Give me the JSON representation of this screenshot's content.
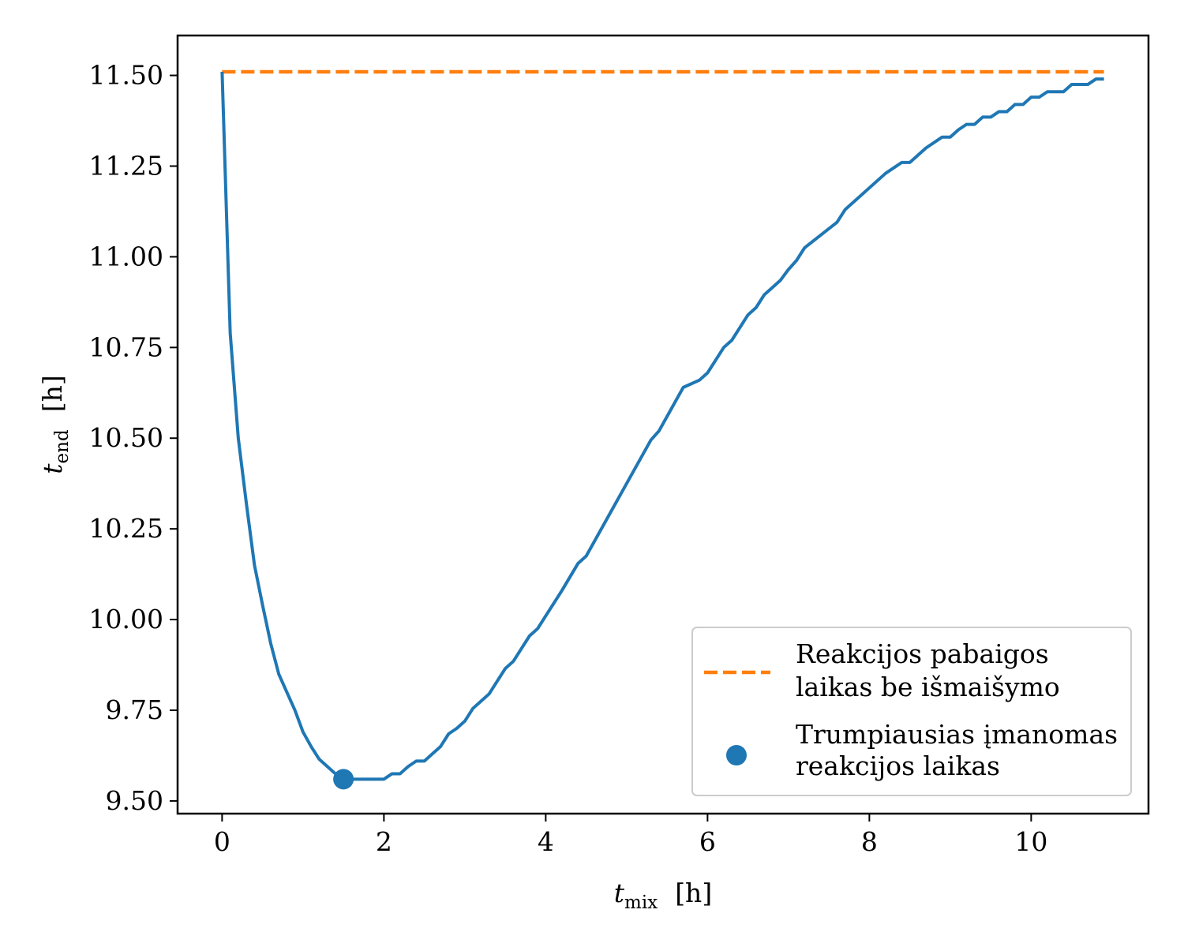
{
  "chart_data": {
    "type": "line",
    "x_ticks": [
      "0",
      "2",
      "4",
      "6",
      "8",
      "10"
    ],
    "y_ticks": [
      "9.50",
      "9.75",
      "10.00",
      "10.25",
      "10.50",
      "10.75",
      "11.00",
      "11.25",
      "11.50"
    ],
    "x_tick_values": [
      0,
      2,
      4,
      6,
      8,
      10
    ],
    "y_tick_values": [
      9.5,
      9.75,
      10.0,
      10.25,
      10.5,
      10.75,
      11.0,
      11.25,
      11.5
    ],
    "xlim": [
      -0.55,
      11.45
    ],
    "ylim": [
      9.465,
      11.61
    ],
    "xlabel": {
      "var": "t",
      "sub": "mix",
      "unit": "[h]"
    },
    "ylabel": {
      "var": "t",
      "sub": "end",
      "unit": "[h]"
    },
    "grid": false,
    "legend_position": "lower-right",
    "series": [
      {
        "name": "Reakcijos pabaigos laikas be išmaišymo",
        "name_lines": [
          "Reakcijos pabaigos",
          "laikas be išmaišymo"
        ],
        "style": "dashed",
        "color": "#ff7f0e",
        "x": [
          0,
          10.9
        ],
        "y": [
          11.51,
          11.51
        ]
      },
      {
        "name": "",
        "style": "solid",
        "color": "#1f77b4",
        "x": [
          0,
          0.1,
          0.2,
          0.3,
          0.4,
          0.5,
          0.6,
          0.7,
          0.8,
          0.9,
          1.0,
          1.1,
          1.2,
          1.3,
          1.4,
          1.5,
          1.6,
          1.7,
          1.8,
          1.9,
          2.0,
          2.1,
          2.2,
          2.3,
          2.4,
          2.5,
          2.6,
          2.7,
          2.8,
          2.9,
          3.0,
          3.1,
          3.2,
          3.3,
          3.4,
          3.5,
          3.6,
          3.7,
          3.8,
          3.9,
          4.0,
          4.2,
          4.4,
          4.5,
          4.7,
          4.9,
          5.1,
          5.3,
          5.4,
          5.5,
          5.7,
          5.9,
          6.0,
          6.1,
          6.2,
          6.3,
          6.4,
          6.5,
          6.6,
          6.7,
          6.8,
          6.9,
          7.0,
          7.1,
          7.2,
          7.4,
          7.6,
          7.7,
          8.0,
          8.2,
          8.4,
          8.5,
          8.7,
          8.9,
          9.0,
          9.1,
          9.2,
          9.3,
          9.4,
          9.5,
          9.6,
          9.7,
          9.8,
          9.9,
          10.0,
          10.1,
          10.2,
          10.3,
          10.4,
          10.5,
          10.6,
          10.7,
          10.8,
          10.9
        ],
        "y": [
          11.51,
          10.79,
          10.5,
          10.32,
          10.15,
          10.04,
          9.935,
          9.85,
          9.8,
          9.75,
          9.69,
          9.65,
          9.615,
          9.595,
          9.575,
          9.56,
          9.56,
          9.56,
          9.56,
          9.56,
          9.56,
          9.575,
          9.575,
          9.595,
          9.61,
          9.61,
          9.63,
          9.65,
          9.685,
          9.7,
          9.72,
          9.755,
          9.775,
          9.795,
          9.83,
          9.865,
          9.885,
          9.92,
          9.955,
          9.975,
          10.01,
          10.08,
          10.155,
          10.175,
          10.255,
          10.335,
          10.415,
          10.495,
          10.52,
          10.56,
          10.64,
          10.66,
          10.68,
          10.715,
          10.75,
          10.77,
          10.805,
          10.84,
          10.86,
          10.895,
          10.915,
          10.935,
          10.965,
          10.99,
          11.025,
          11.06,
          11.095,
          11.13,
          11.19,
          11.23,
          11.26,
          11.26,
          11.3,
          11.33,
          11.33,
          11.35,
          11.365,
          11.365,
          11.385,
          11.385,
          11.4,
          11.4,
          11.42,
          11.42,
          11.44,
          11.44,
          11.455,
          11.455,
          11.455,
          11.475,
          11.475,
          11.475,
          11.49,
          11.49
        ]
      }
    ],
    "highlight_point": {
      "name": "Trumpiausias įmanomas reakcijos laikas",
      "name_lines": [
        "Trumpiausias įmanomas",
        "reakcijos laikas"
      ],
      "x": 1.5,
      "y": 9.56,
      "color": "#1f77b4"
    }
  }
}
